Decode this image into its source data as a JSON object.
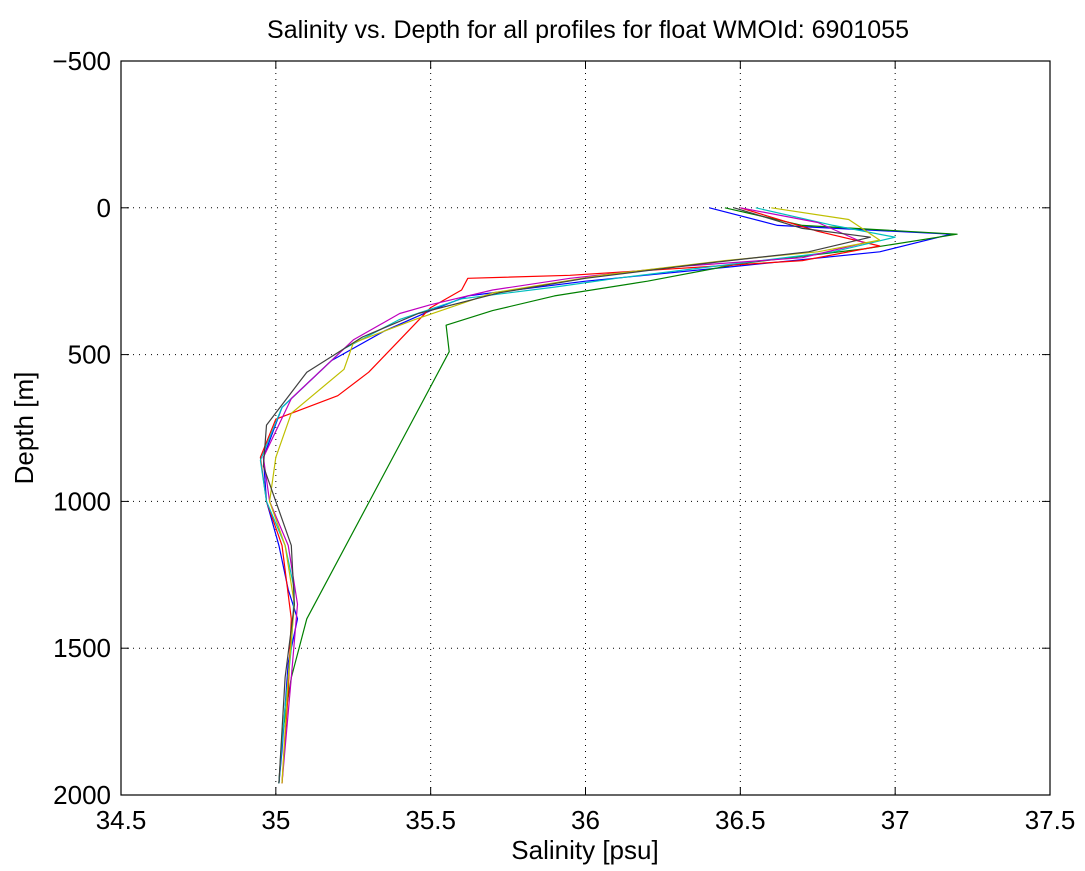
{
  "chart_data": {
    "type": "line",
    "title": "Salinity vs. Depth for all profiles for float WMOId: 6901055",
    "xlabel": "Salinity [psu]",
    "ylabel": "Depth [m]",
    "xlim": [
      34.5,
      37.5
    ],
    "ylim": [
      -500,
      2000
    ],
    "y_reversed": true,
    "grid": true,
    "x_ticks": [
      34.5,
      35,
      35.5,
      36,
      36.5,
      37,
      37.5
    ],
    "y_ticks": [
      -500,
      0,
      500,
      1000,
      1500,
      2000
    ],
    "x_tick_labels": [
      "34.5",
      "35",
      "35.5",
      "36",
      "36.5",
      "37",
      "37.5"
    ],
    "y_tick_labels": [
      "−500",
      "0",
      "500",
      "1000",
      "1500",
      "2000"
    ],
    "series_colors": [
      "#0000ff",
      "#008000",
      "#ff0000",
      "#00bfbf",
      "#bf00bf",
      "#bfbf00",
      "#404040"
    ],
    "profiles": [
      {
        "x": [
          36.4,
          36.62,
          37.18,
          36.95,
          36.48,
          36.0,
          35.62,
          35.5,
          35.35,
          35.18,
          35.02,
          34.96,
          34.97,
          35.01,
          35.04,
          35.07,
          35.04,
          35.03,
          35.02,
          35.01
        ],
        "y": [
          0,
          60,
          90,
          150,
          200,
          250,
          300,
          350,
          420,
          520,
          680,
          850,
          1000,
          1150,
          1300,
          1400,
          1550,
          1700,
          1850,
          1960
        ]
      },
      {
        "x": [
          36.45,
          36.7,
          37.2,
          36.9,
          36.5,
          36.2,
          35.9,
          35.7,
          35.55,
          35.56,
          35.1,
          35.05,
          35.02,
          35.01
        ],
        "y": [
          0,
          60,
          90,
          140,
          190,
          250,
          300,
          350,
          400,
          490,
          1400,
          1600,
          1800,
          1960
        ]
      },
      {
        "x": [
          36.5,
          36.75,
          36.95,
          36.7,
          36.4,
          35.95,
          35.62,
          35.6,
          35.5,
          35.4,
          35.3,
          35.2,
          35.0,
          34.95,
          34.97,
          35.02,
          35.05,
          35.04,
          35.02
        ],
        "y": [
          0,
          80,
          130,
          180,
          200,
          230,
          240,
          280,
          340,
          450,
          560,
          640,
          720,
          850,
          1000,
          1150,
          1400,
          1650,
          1960
        ]
      },
      {
        "x": [
          36.55,
          36.8,
          37.0,
          36.8,
          36.1,
          35.9,
          35.6,
          35.4,
          35.22,
          35.02,
          34.95,
          34.97,
          35.03,
          35.06,
          35.05,
          35.03,
          35.01
        ],
        "y": [
          0,
          60,
          100,
          150,
          240,
          270,
          310,
          380,
          480,
          680,
          860,
          1000,
          1150,
          1300,
          1500,
          1700,
          1960
        ]
      },
      {
        "x": [
          36.5,
          36.75,
          36.9,
          36.7,
          36.3,
          35.95,
          35.7,
          35.5,
          35.4,
          35.25,
          35.05,
          34.96,
          34.98,
          35.04,
          35.07,
          35.05,
          35.02
        ],
        "y": [
          0,
          50,
          120,
          170,
          200,
          240,
          280,
          330,
          360,
          450,
          650,
          850,
          1000,
          1150,
          1350,
          1600,
          1960
        ]
      },
      {
        "x": [
          36.6,
          36.85,
          36.95,
          36.75,
          36.45,
          36.05,
          35.7,
          35.45,
          35.25,
          35.22,
          35.05,
          35.0,
          34.98,
          35.03,
          35.06,
          35.04,
          35.02
        ],
        "y": [
          0,
          40,
          110,
          150,
          180,
          230,
          290,
          380,
          460,
          550,
          700,
          850,
          1000,
          1150,
          1350,
          1600,
          1960
        ]
      },
      {
        "x": [
          36.48,
          36.7,
          36.92,
          36.72,
          36.38,
          36.0,
          35.72,
          35.46,
          35.28,
          35.1,
          34.97,
          34.96,
          35.0,
          35.05,
          35.06,
          35.03,
          35.01
        ],
        "y": [
          0,
          70,
          100,
          150,
          190,
          240,
          290,
          360,
          440,
          560,
          740,
          880,
          1000,
          1150,
          1350,
          1600,
          1960
        ]
      }
    ]
  }
}
